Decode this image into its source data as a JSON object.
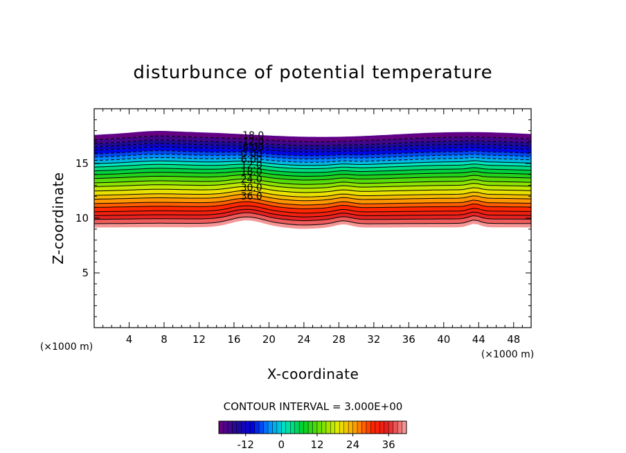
{
  "chart_data": {
    "type": "contour",
    "title": "disturbunce of potential temperature",
    "xlabel": "X-coordinate",
    "ylabel": "Z-coordinate",
    "xlim": [
      0,
      50
    ],
    "ylim": [
      0,
      20
    ],
    "x_ticks": [
      4,
      8,
      12,
      16,
      20,
      24,
      28,
      32,
      36,
      40,
      44,
      48
    ],
    "y_ticks": [
      5,
      10,
      15
    ],
    "x_unit": "(×1000 m)",
    "y_unit": "(×1000 m)",
    "contour_interval_text": "CONTOUR INTERVAL = 3.000E+00",
    "contour_interval": 3,
    "contour_labels": [
      "-18.0",
      "-12.0",
      "-6.00",
      "0.00",
      "6.00",
      "12.0",
      "18.0",
      "24.0",
      "30.0",
      "36.0"
    ],
    "colorbar": {
      "ticks": [
        -12,
        0,
        12,
        24,
        36
      ]
    },
    "contour_z": [
      17.6,
      17.2,
      16.85,
      16.55,
      16.25,
      15.9,
      15.6,
      15.3,
      15.0,
      14.7,
      14.35,
      14.0,
      13.65,
      13.25,
      12.9,
      12.5,
      12.1,
      11.75,
      11.35,
      11.0,
      10.6,
      10.25,
      9.9,
      9.5
    ]
  }
}
